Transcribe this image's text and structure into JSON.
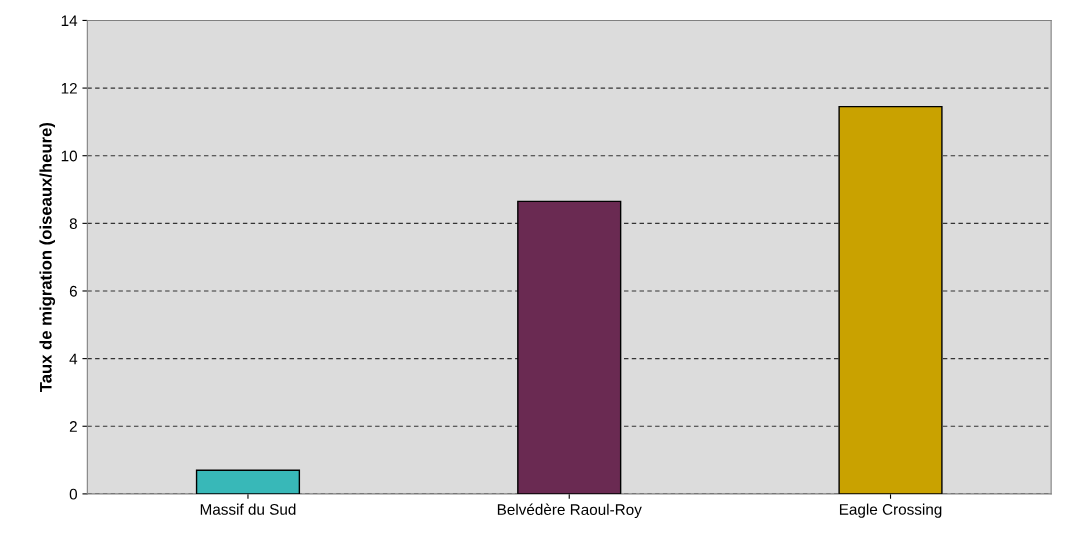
{
  "chart_data": {
    "type": "bar",
    "ylabel": "Taux de migration (oiseaux/heure)",
    "categories": [
      "Massif du Sud",
      "Belvédère Raoul-Roy",
      "Eagle Crossing"
    ],
    "values": [
      0.7,
      8.65,
      11.45
    ],
    "colors": [
      "#38b8b8",
      "#6a2a52",
      "#c9a200"
    ],
    "ylim": [
      0,
      14
    ],
    "yticks": [
      0,
      2,
      4,
      6,
      8,
      10,
      12,
      14
    ],
    "grid": "y"
  }
}
